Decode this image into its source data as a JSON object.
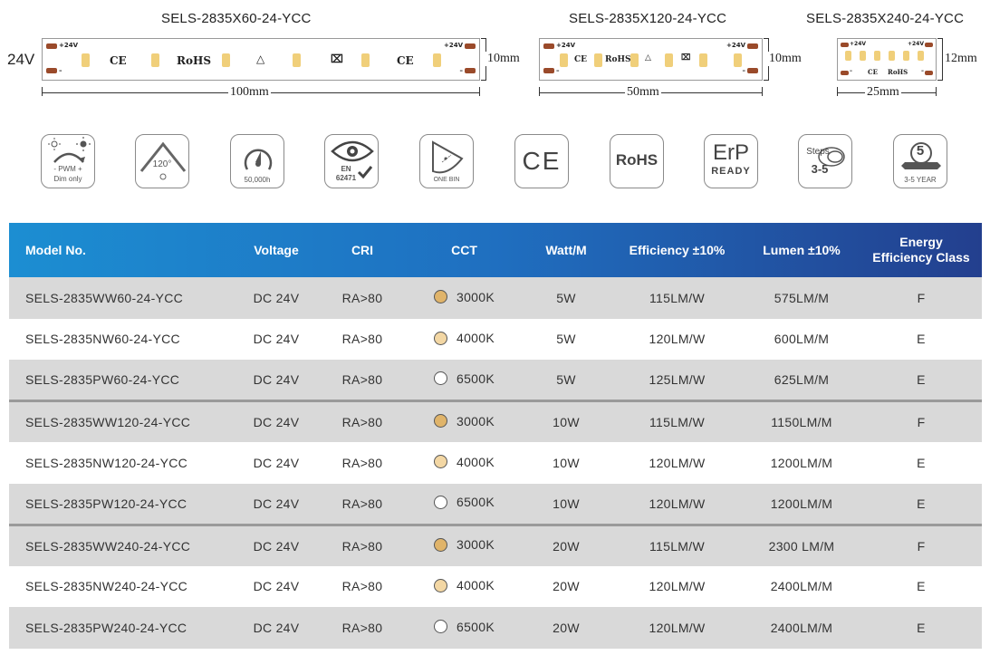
{
  "strips": [
    {
      "title": "SELS-2835X60-24-YCC",
      "voltage_label": "24V",
      "pos_label": "+24V",
      "neg_label": "–",
      "marks": [
        "CE",
        "RoHS",
        "CE"
      ],
      "length_label": "100mm",
      "width_label": "10mm"
    },
    {
      "title": "SELS-2835X120-24-YCC",
      "pos_label": "+24V",
      "neg_label": "–",
      "marks": [
        "CE",
        "RoHS"
      ],
      "length_label": "50mm",
      "width_label": "10mm"
    },
    {
      "title": "SELS-2835X240-24-YCC",
      "pos_label": "+24V",
      "neg_label": "–",
      "marks": [
        "CE",
        "RoHS"
      ],
      "length_label": "25mm",
      "width_label": "12mm"
    }
  ],
  "features": [
    {
      "icon": "pwm-dimming-icon",
      "line1": "PWM",
      "line2": "Dim only",
      "minus": "-",
      "plus": "+"
    },
    {
      "icon": "beam-angle-icon",
      "text": "120°"
    },
    {
      "icon": "lifetime-icon",
      "text": "50,000h"
    },
    {
      "icon": "eye-safety-icon",
      "line1": "EN",
      "line2": "62471"
    },
    {
      "icon": "one-bin-icon",
      "text": "ONE BIN"
    },
    {
      "icon": "ce-mark-icon",
      "text": "CE"
    },
    {
      "icon": "rohs-icon",
      "text": "RoHS"
    },
    {
      "icon": "erp-ready-icon",
      "line1": "ErP",
      "line2": "READY"
    },
    {
      "icon": "macadam-steps-icon",
      "line1": "Steps",
      "line2": "3-5"
    },
    {
      "icon": "warranty-icon",
      "line1": "5",
      "line2": "3-5 YEAR"
    }
  ],
  "table": {
    "headers": {
      "model": "Model No.",
      "voltage": "Voltage",
      "cri": "CRI",
      "cct": "CCT",
      "watt": "Watt/M",
      "efficiency": "Efficiency ±10%",
      "lumen": "Lumen ±10%",
      "energy_line1": "Energy",
      "energy_line2": "Efficiency Class"
    },
    "colors": {
      "3000K": "#e0b46a",
      "4000K": "#f3d7a4",
      "6500K": "#ffffff"
    },
    "rows": [
      {
        "model": "SELS-2835WW60-24-YCC",
        "voltage": "DC 24V",
        "cri": "RA>80",
        "cct": "3000K",
        "watt": "5W",
        "efficiency": "115LM/W",
        "lumen": "575LM/M",
        "energy": "F"
      },
      {
        "model": "SELS-2835NW60-24-YCC",
        "voltage": "DC 24V",
        "cri": "RA>80",
        "cct": "4000K",
        "watt": "5W",
        "efficiency": "120LM/W",
        "lumen": "600LM/M",
        "energy": "E"
      },
      {
        "model": "SELS-2835PW60-24-YCC",
        "voltage": "DC 24V",
        "cri": "RA>80",
        "cct": "6500K",
        "watt": "5W",
        "efficiency": "125LM/W",
        "lumen": "625LM/M",
        "energy": "E"
      },
      {
        "model": "SELS-2835WW120-24-YCC",
        "voltage": "DC 24V",
        "cri": "RA>80",
        "cct": "3000K",
        "watt": "10W",
        "efficiency": "115LM/W",
        "lumen": "1150LM/M",
        "energy": "F"
      },
      {
        "model": "SELS-2835NW120-24-YCC",
        "voltage": "DC 24V",
        "cri": "RA>80",
        "cct": "4000K",
        "watt": "10W",
        "efficiency": "120LM/W",
        "lumen": "1200LM/M",
        "energy": "E"
      },
      {
        "model": "SELS-2835PW120-24-YCC",
        "voltage": "DC 24V",
        "cri": "RA>80",
        "cct": "6500K",
        "watt": "10W",
        "efficiency": "120LM/W",
        "lumen": "1200LM/M",
        "energy": "E"
      },
      {
        "model": "SELS-2835WW240-24-YCC",
        "voltage": "DC 24V",
        "cri": "RA>80",
        "cct": "3000K",
        "watt": "20W",
        "efficiency": "115LM/W",
        "lumen": "2300 LM/M",
        "energy": "F"
      },
      {
        "model": "SELS-2835NW240-24-YCC",
        "voltage": "DC 24V",
        "cri": "RA>80",
        "cct": "4000K",
        "watt": "20W",
        "efficiency": "120LM/W",
        "lumen": "2400LM/M",
        "energy": "E"
      },
      {
        "model": "SELS-2835PW240-24-YCC",
        "voltage": "DC 24V",
        "cri": "RA>80",
        "cct": "6500K",
        "watt": "20W",
        "efficiency": "120LM/W",
        "lumen": "2400LM/M",
        "energy": "E"
      }
    ]
  }
}
